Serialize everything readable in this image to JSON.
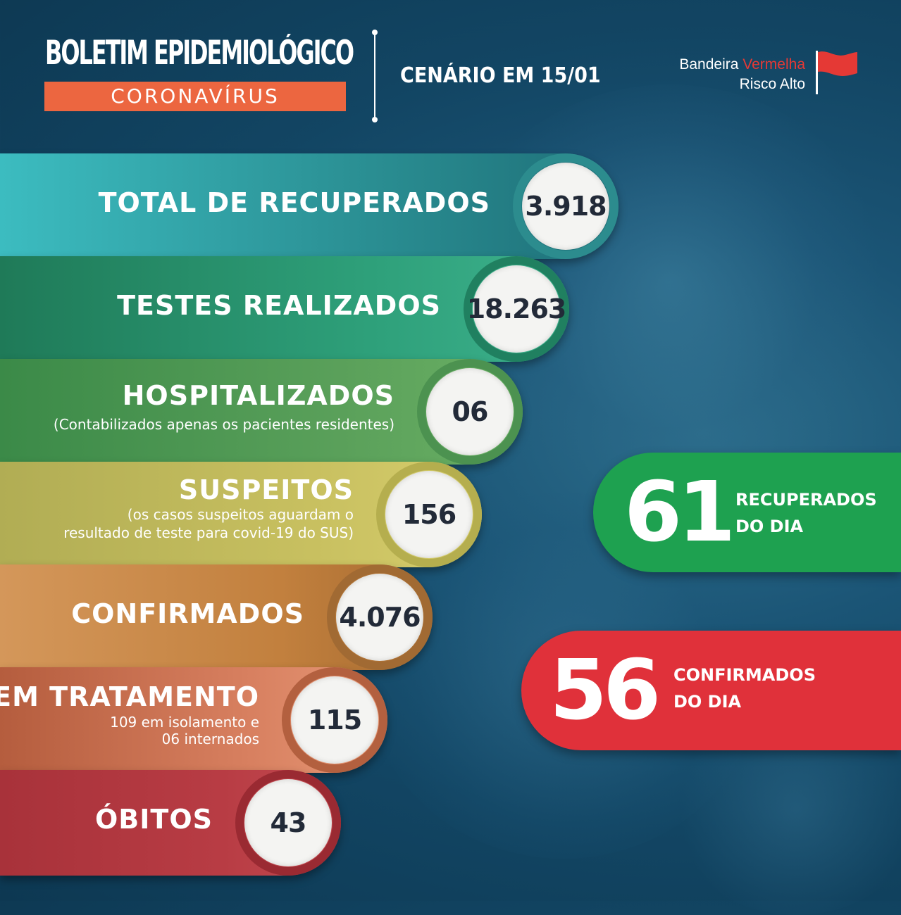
{
  "header": {
    "title": "BOLETIM EPIDEMIOLÓGICO",
    "subtitle": "CORONAVÍRUS",
    "scenario": "CENÁRIO EM 15/01",
    "flag_line1_prefix": "Bandeira ",
    "flag_line1_color_word": "Vermelha",
    "flag_line2": "Risco Alto",
    "flag_color": "#e53935"
  },
  "stats": {
    "recuperados": {
      "label": "TOTAL DE RECUPERADOS",
      "value": "3.918"
    },
    "testes": {
      "label": "TESTES REALIZADOS",
      "value": "18.263"
    },
    "hospitalizados": {
      "label": "HOSPITALIZADOS",
      "note": "(Contabilizados apenas os pacientes residentes)",
      "value": "06"
    },
    "suspeitos": {
      "label": "SUSPEITOS",
      "note_line1": "(os casos suspeitos aguardam o",
      "note_line2": "resultado de teste para covid-19 do SUS)",
      "value": "156"
    },
    "confirmados": {
      "label": "CONFIRMADOS",
      "value": "4.076"
    },
    "tratamento": {
      "label": "EM TRATAMENTO",
      "note_line1": "109 em isolamento e",
      "note_line2": "06 internados",
      "value": "115"
    },
    "obitos": {
      "label": "ÓBITOS",
      "value": "43"
    }
  },
  "daily": {
    "recuperados": {
      "value": "61",
      "caption_line1": "RECUPERADOS",
      "caption_line2": "DO DIA",
      "color": "#1ea150"
    },
    "confirmados": {
      "value": "56",
      "caption_line1": "CONFIRMADOS",
      "caption_line2": "DO DIA",
      "color": "#e0313a"
    }
  }
}
